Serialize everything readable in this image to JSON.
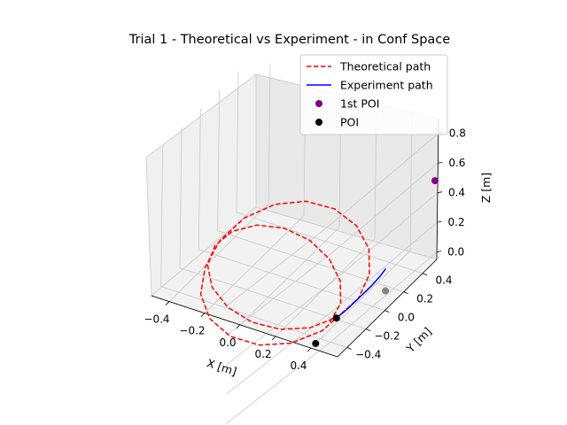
{
  "chart_data": {
    "type": "line3d",
    "title": "Trial 1 - Theoretical vs Experiment - in Conf Space",
    "xlabel": "X [m]",
    "ylabel": "Y [m]",
    "zlabel": "Z [m]",
    "xlim": [
      -0.5,
      0.55
    ],
    "ylim": [
      -0.5,
      0.55
    ],
    "zlim": [
      -0.05,
      0.9
    ],
    "xticks": [
      -0.4,
      -0.2,
      0.0,
      0.2,
      0.4
    ],
    "xtick_labels": [
      "−0.4",
      "−0.2",
      "0.0",
      "0.2",
      "0.4"
    ],
    "yticks": [
      -0.4,
      -0.2,
      0.0,
      0.2,
      0.4
    ],
    "ytick_labels": [
      "−0.4",
      "−0.2",
      "0.0",
      "0.2",
      "0.4"
    ],
    "zticks": [
      0.0,
      0.2,
      0.4,
      0.6,
      0.8
    ],
    "ztick_labels": [
      "0.0",
      "0.2",
      "0.4",
      "0.6",
      "0.8"
    ],
    "grid": true,
    "legend_placement": "top-right",
    "series": [
      {
        "name": "Theoretical path",
        "style": "dashed",
        "color": "#ff0000",
        "x": [
          0.4,
          0.365,
          0.267,
          0.124,
          -0.04,
          -0.199,
          -0.327,
          -0.404,
          -0.416,
          -0.361,
          -0.249,
          -0.097,
          0.069,
          0.222,
          0.341,
          0.41,
          0.418,
          0.361,
          0.249,
          0.097,
          -0.069,
          -0.222,
          -0.341,
          -0.41,
          -0.418,
          -0.365,
          -0.267,
          -0.124,
          0.04,
          0.199,
          0.327,
          0.404,
          0.416
        ],
        "y": [
          -0.3,
          -0.121,
          0.059,
          0.21,
          0.308,
          0.337,
          0.29,
          0.175,
          0.012,
          -0.167,
          -0.33,
          -0.45,
          -0.507,
          -0.49,
          -0.397,
          -0.237,
          -0.032,
          0.191,
          0.395,
          0.549,
          0.627,
          0.613,
          0.505,
          0.316,
          0.071,
          -0.186,
          -0.417,
          -0.59,
          -0.679,
          -0.673,
          -0.573,
          -0.391,
          -0.153
        ],
        "z": [
          0.0,
          0.0,
          0.0,
          0.0,
          0.0,
          0.0,
          0.0,
          0.0,
          0.0,
          0.0,
          0.0,
          0.0,
          0.0,
          0.0,
          0.0,
          0.0,
          0.0,
          0.0,
          0.0,
          0.0,
          0.0,
          0.0,
          0.0,
          0.0,
          0.0,
          0.0,
          0.0,
          0.0,
          0.0,
          0.0,
          0.0,
          0.0,
          0.0
        ]
      },
      {
        "name": "Experiment path",
        "style": "solid",
        "color": "#0000ff",
        "x": [
          0.41,
          0.43,
          0.45,
          0.47,
          0.49,
          0.5
        ],
        "y": [
          -0.25,
          -0.16,
          -0.07,
          0.0,
          0.06,
          0.1
        ],
        "z": [
          0.0,
          0.02,
          0.05,
          0.08,
          0.12,
          0.15
        ]
      }
    ],
    "points": [
      {
        "name": "1st POI",
        "color": "#800080",
        "x": 0.55,
        "y": 0.52,
        "z": 0.5
      },
      {
        "name": "POI",
        "color": "#000000",
        "x": 0.41,
        "y": -0.25,
        "z": 0.0
      },
      {
        "name": "POI",
        "color": "#000000",
        "x": 0.4,
        "y": -0.45,
        "z": -0.05
      },
      {
        "name": "POI",
        "color": "#000000",
        "x": 0.5,
        "y": 0.1,
        "z": 0.0
      }
    ],
    "legend": [
      {
        "label": "Theoretical path",
        "kind": "line",
        "style": "dashed",
        "color": "#ff0000"
      },
      {
        "label": "Experiment path",
        "kind": "line",
        "style": "solid",
        "color": "#0000ff"
      },
      {
        "label": "1st POI",
        "kind": "marker",
        "color": "#800080"
      },
      {
        "label": "POI",
        "kind": "marker",
        "color": "#000000"
      }
    ]
  }
}
